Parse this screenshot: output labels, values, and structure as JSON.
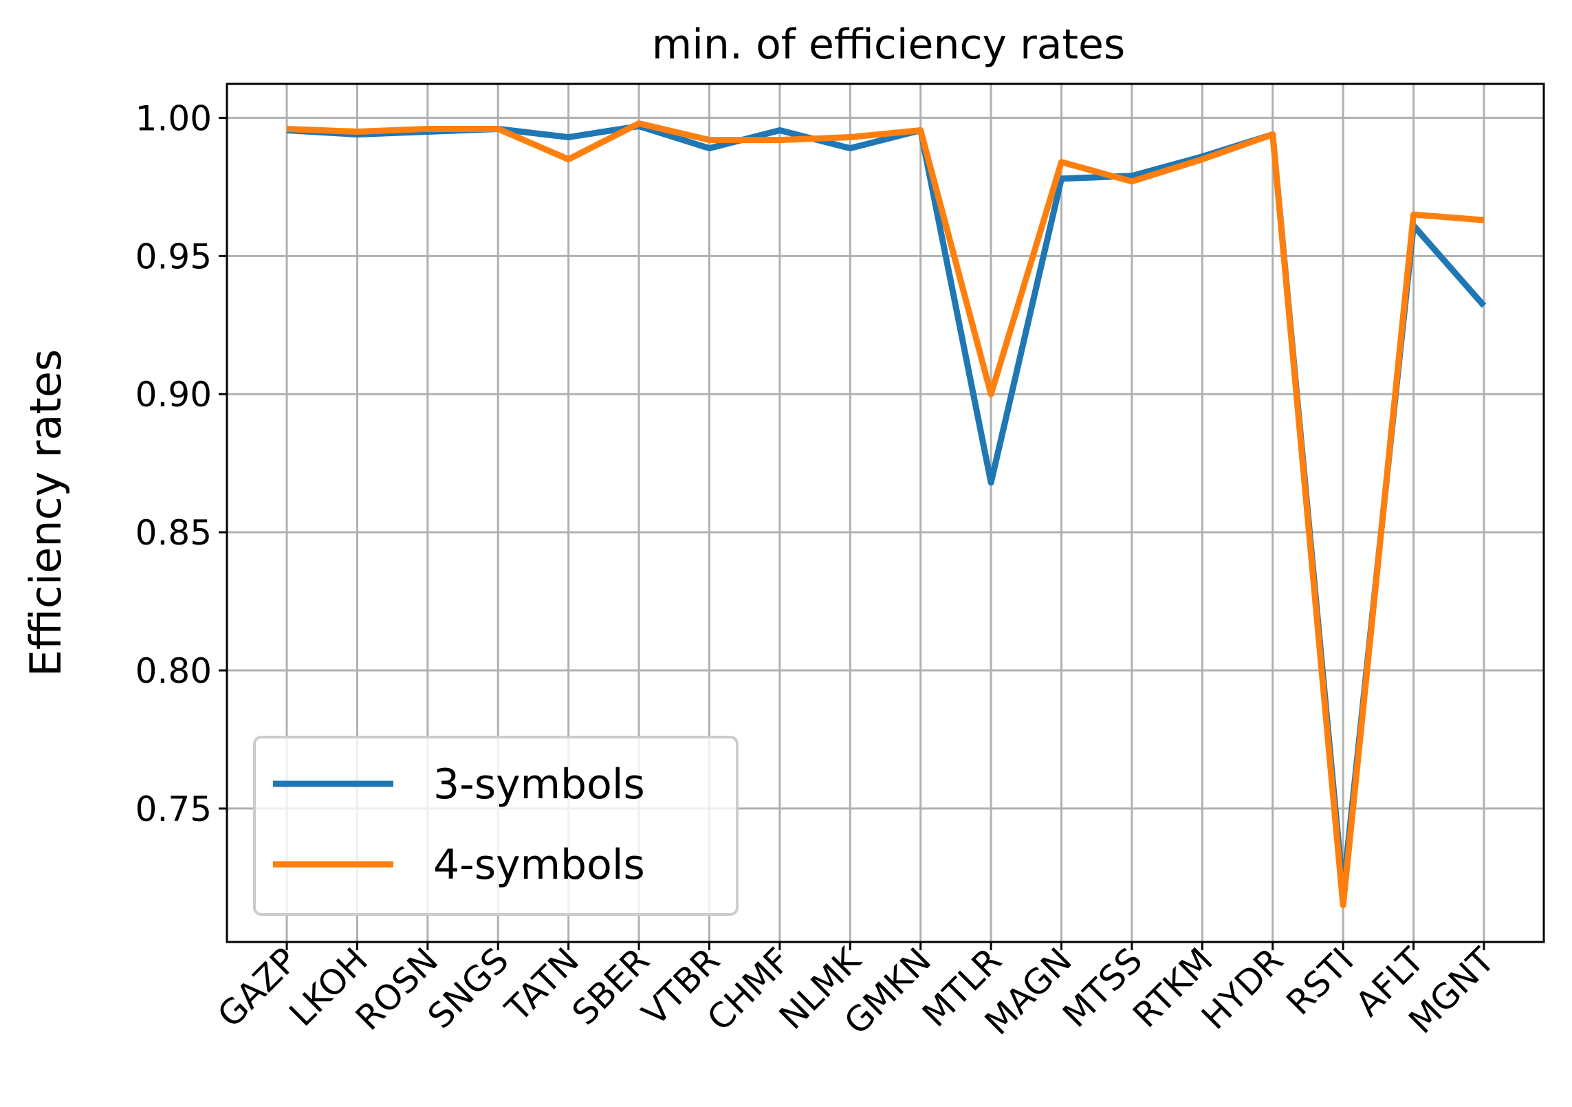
{
  "chart_data": {
    "type": "line",
    "title": "min. of efficiency rates",
    "y_label": "Efficiency rates",
    "categories": [
      "GAZP",
      "LKOH",
      "ROSN",
      "SNGS",
      "TATN",
      "SBER",
      "VTBR",
      "CHMF",
      "NLMK",
      "GMKN",
      "MTLR",
      "MAGN",
      "MTSS",
      "RTKM",
      "HYDR",
      "RSTI",
      "AFLT",
      "MGNT"
    ],
    "series": [
      {
        "name": "3-symbols",
        "color": "#1f77b4",
        "values": [
          0.9955,
          0.994,
          0.995,
          0.996,
          0.993,
          0.997,
          0.989,
          0.9955,
          0.989,
          0.9955,
          0.868,
          0.978,
          0.979,
          0.986,
          0.994,
          0.72,
          0.961,
          0.932
        ]
      },
      {
        "name": "4-symbols",
        "color": "#ff7f0e",
        "values": [
          0.996,
          0.995,
          0.996,
          0.996,
          0.985,
          0.998,
          0.992,
          0.992,
          0.993,
          0.9955,
          0.9,
          0.984,
          0.977,
          0.985,
          0.994,
          0.715,
          0.965,
          0.963
        ]
      }
    ],
    "ylim": [
      0.7017,
      1.0123
    ],
    "yticks": [
      {
        "value": 0.75,
        "label": "0.75"
      },
      {
        "value": 0.8,
        "label": "0.80"
      },
      {
        "value": 0.85,
        "label": "0.85"
      },
      {
        "value": 0.9,
        "label": "0.90"
      },
      {
        "value": 0.95,
        "label": "0.95"
      },
      {
        "value": 1.0,
        "label": "1.00"
      }
    ],
    "grid": true,
    "legend": "lower left"
  }
}
